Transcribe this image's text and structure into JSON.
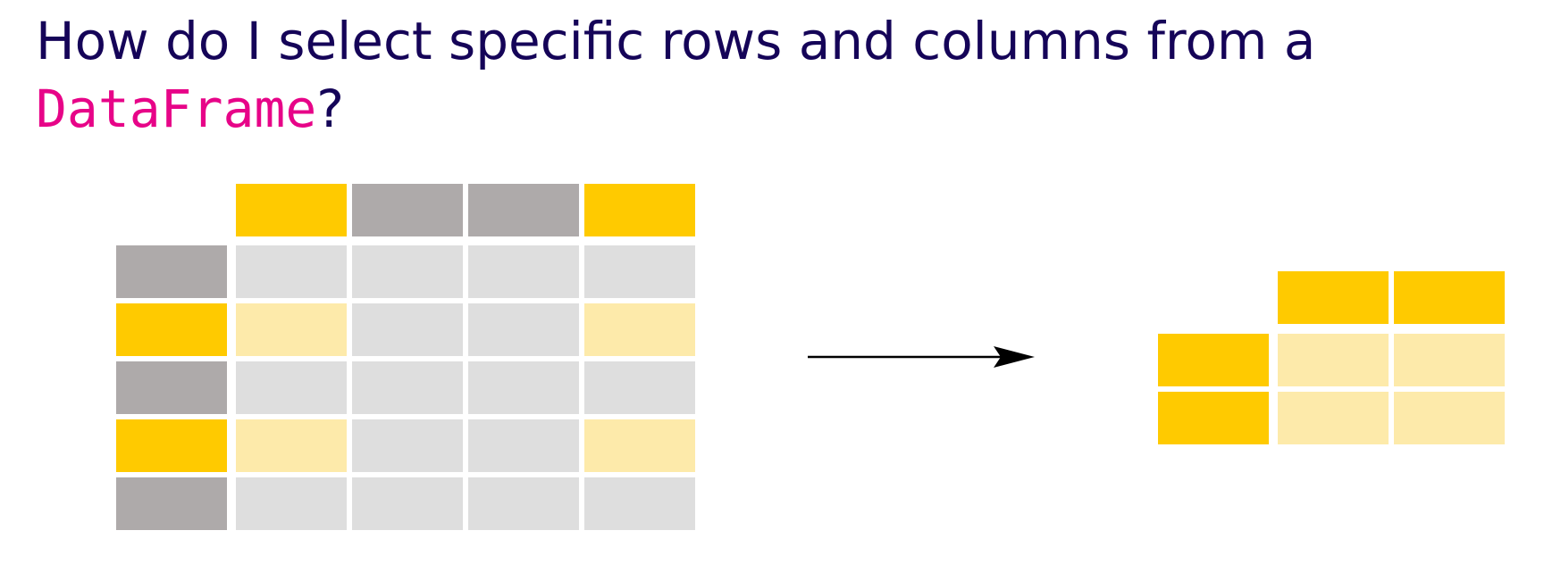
{
  "title": {
    "text_before": "How do I select specific rows and columns from a",
    "code": "DataFrame",
    "text_after": "?"
  },
  "colors": {
    "title": "#150458",
    "code": "#e70488",
    "selected_header": "#ffca00",
    "unselected_header": "#aeaaaa",
    "selected_cell": "#fdeaaa",
    "unselected_cell": "#dedede"
  },
  "source_table": {
    "columns": 4,
    "rows": 5,
    "selected_columns": [
      1,
      4
    ],
    "selected_rows": [
      2,
      4
    ]
  },
  "result_table": {
    "columns": 2,
    "rows": 2
  },
  "arrow": {
    "direction": "right"
  }
}
